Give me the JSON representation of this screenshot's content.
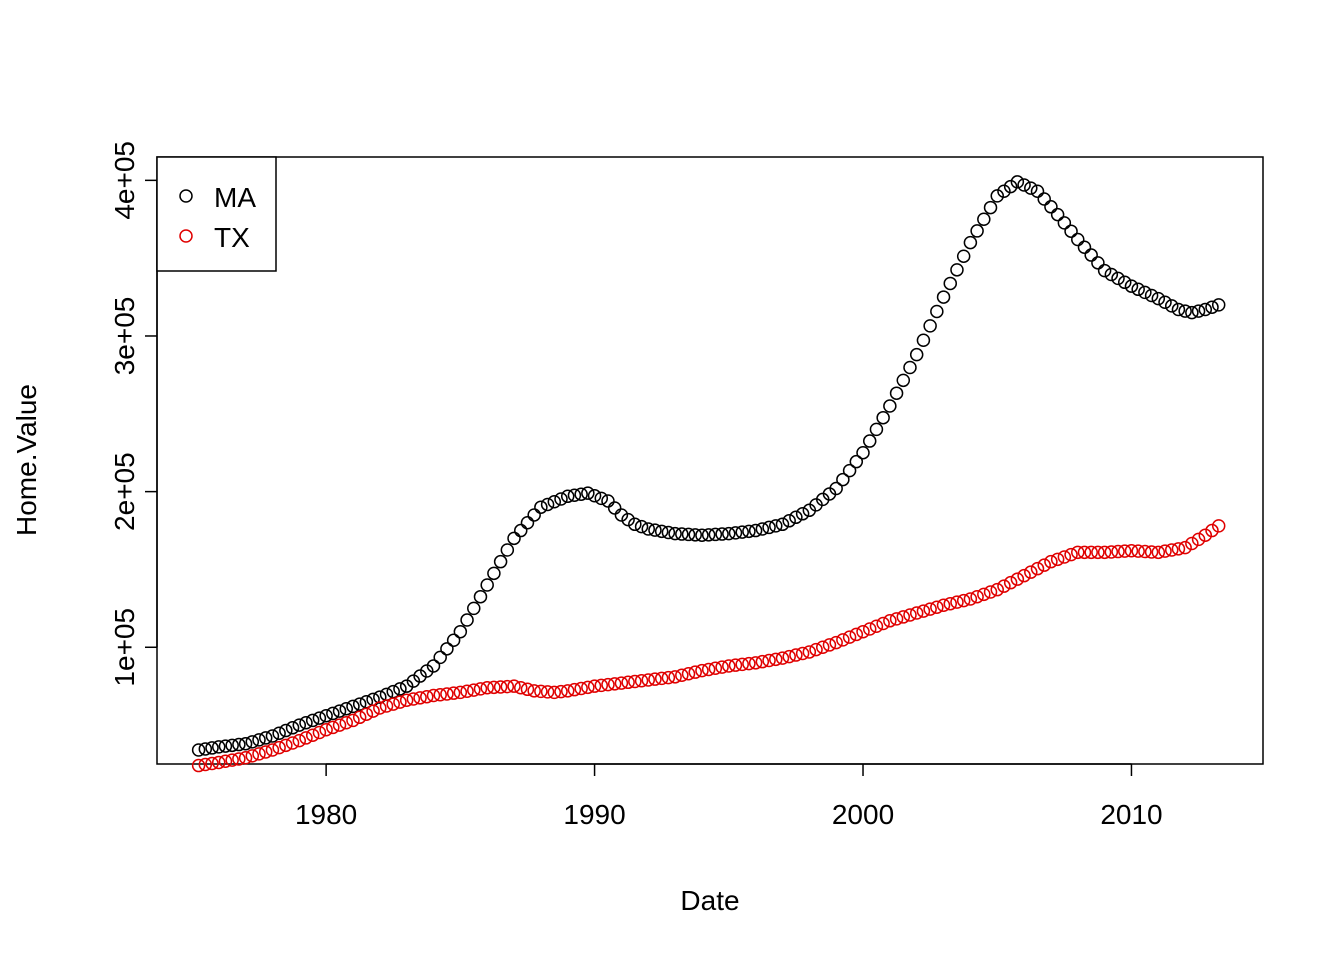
{
  "chart_data": {
    "type": "scatter",
    "title": "",
    "xlabel": "Date",
    "ylabel": "Home.Value",
    "xlim": [
      1973.7,
      2014.9
    ],
    "ylim": [
      25000,
      415000
    ],
    "x_ticks": [
      1980,
      1990,
      2000,
      2010
    ],
    "x_tick_labels": [
      "1980",
      "1990",
      "2000",
      "2010"
    ],
    "y_ticks": [
      100000,
      200000,
      300000,
      400000
    ],
    "y_tick_labels": [
      "1e+05",
      "2e+05",
      "3e+05",
      "4e+05"
    ],
    "grid": false,
    "legend": {
      "position": "top-left",
      "marker": "open-circle"
    },
    "sampling": {
      "start": 1975.25,
      "end": 2013.25,
      "step": 0.25
    },
    "series": [
      {
        "name": "MA",
        "color": "#000000",
        "anchors": [
          [
            1975.25,
            34000
          ],
          [
            1976,
            36000
          ],
          [
            1977,
            38000
          ],
          [
            1978,
            43000
          ],
          [
            1979,
            50000
          ],
          [
            1980,
            56000
          ],
          [
            1981,
            62000
          ],
          [
            1982,
            68000
          ],
          [
            1983,
            75000
          ],
          [
            1984,
            88000
          ],
          [
            1985,
            110000
          ],
          [
            1986,
            140000
          ],
          [
            1987,
            170000
          ],
          [
            1988,
            190000
          ],
          [
            1989,
            197000
          ],
          [
            1989.75,
            199000
          ],
          [
            1990.5,
            194000
          ],
          [
            1991,
            185000
          ],
          [
            1991.5,
            179000
          ],
          [
            1992,
            176000
          ],
          [
            1993,
            173000
          ],
          [
            1994,
            172000
          ],
          [
            1995,
            173000
          ],
          [
            1996,
            175000
          ],
          [
            1997,
            179000
          ],
          [
            1998,
            188000
          ],
          [
            1999,
            202000
          ],
          [
            2000,
            225000
          ],
          [
            2001,
            255000
          ],
          [
            2002,
            288000
          ],
          [
            2003,
            325000
          ],
          [
            2004,
            360000
          ],
          [
            2005,
            390000
          ],
          [
            2005.75,
            399000
          ],
          [
            2006.5,
            393000
          ],
          [
            2007.25,
            378000
          ],
          [
            2008,
            362000
          ],
          [
            2009,
            342000
          ],
          [
            2010,
            332000
          ],
          [
            2011,
            324000
          ],
          [
            2011.75,
            317000
          ],
          [
            2012.25,
            315000
          ],
          [
            2012.75,
            317000
          ],
          [
            2013.25,
            320000
          ]
        ]
      },
      {
        "name": "TX",
        "color": "#e00000",
        "anchors": [
          [
            1975.25,
            24000
          ],
          [
            1976,
            26000
          ],
          [
            1977,
            29000
          ],
          [
            1978,
            34000
          ],
          [
            1979,
            40000
          ],
          [
            1980,
            47000
          ],
          [
            1981,
            53000
          ],
          [
            1982,
            61000
          ],
          [
            1983,
            66000
          ],
          [
            1984,
            69000
          ],
          [
            1985,
            71000
          ],
          [
            1986,
            74000
          ],
          [
            1987,
            75000
          ],
          [
            1987.75,
            72000
          ],
          [
            1988.5,
            71000
          ],
          [
            1989,
            72000
          ],
          [
            1990,
            75000
          ],
          [
            1991,
            77000
          ],
          [
            1992,
            79000
          ],
          [
            1993,
            81000
          ],
          [
            1994,
            85000
          ],
          [
            1995,
            88000
          ],
          [
            1996,
            90000
          ],
          [
            1997,
            93000
          ],
          [
            1998,
            97000
          ],
          [
            1999,
            103000
          ],
          [
            2000,
            110000
          ],
          [
            2001,
            117000
          ],
          [
            2002,
            122000
          ],
          [
            2003,
            127000
          ],
          [
            2004,
            131000
          ],
          [
            2005,
            137000
          ],
          [
            2006,
            146000
          ],
          [
            2007,
            155000
          ],
          [
            2008,
            161000
          ],
          [
            2009,
            161000
          ],
          [
            2010,
            162000
          ],
          [
            2011,
            161000
          ],
          [
            2012,
            164000
          ],
          [
            2012.75,
            172000
          ],
          [
            2013.25,
            178000
          ]
        ]
      }
    ]
  }
}
